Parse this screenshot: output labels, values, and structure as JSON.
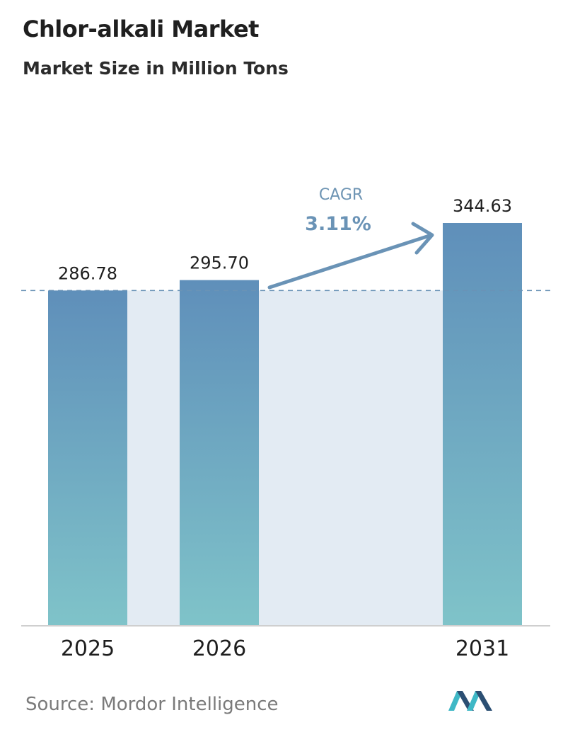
{
  "chart_data": {
    "type": "bar",
    "title": "Chlor-alkali Market",
    "subtitle": "Market Size in Million Tons",
    "categories": [
      "2025",
      "2026",
      "2031"
    ],
    "values": [
      286.78,
      295.7,
      344.63
    ],
    "value_labels": [
      "286.78",
      "295.70",
      "344.63"
    ],
    "xlabel": "",
    "ylabel": "",
    "grid": false,
    "reference_line": 286.78,
    "annotation": {
      "label": "CAGR",
      "value": "3.11%"
    }
  },
  "source": "Source:  Mordor Intelligence",
  "colors": {
    "bar_top": "#5f8fba",
    "bar_bottom": "#7fc3c9",
    "band": "#e3ebf3",
    "arrow": "#6a93b6",
    "dashed_line": "#6a93b6",
    "axis": "#cfcfcf",
    "logo_dark": "#2c4f73",
    "logo_light": "#3fb8c6"
  }
}
